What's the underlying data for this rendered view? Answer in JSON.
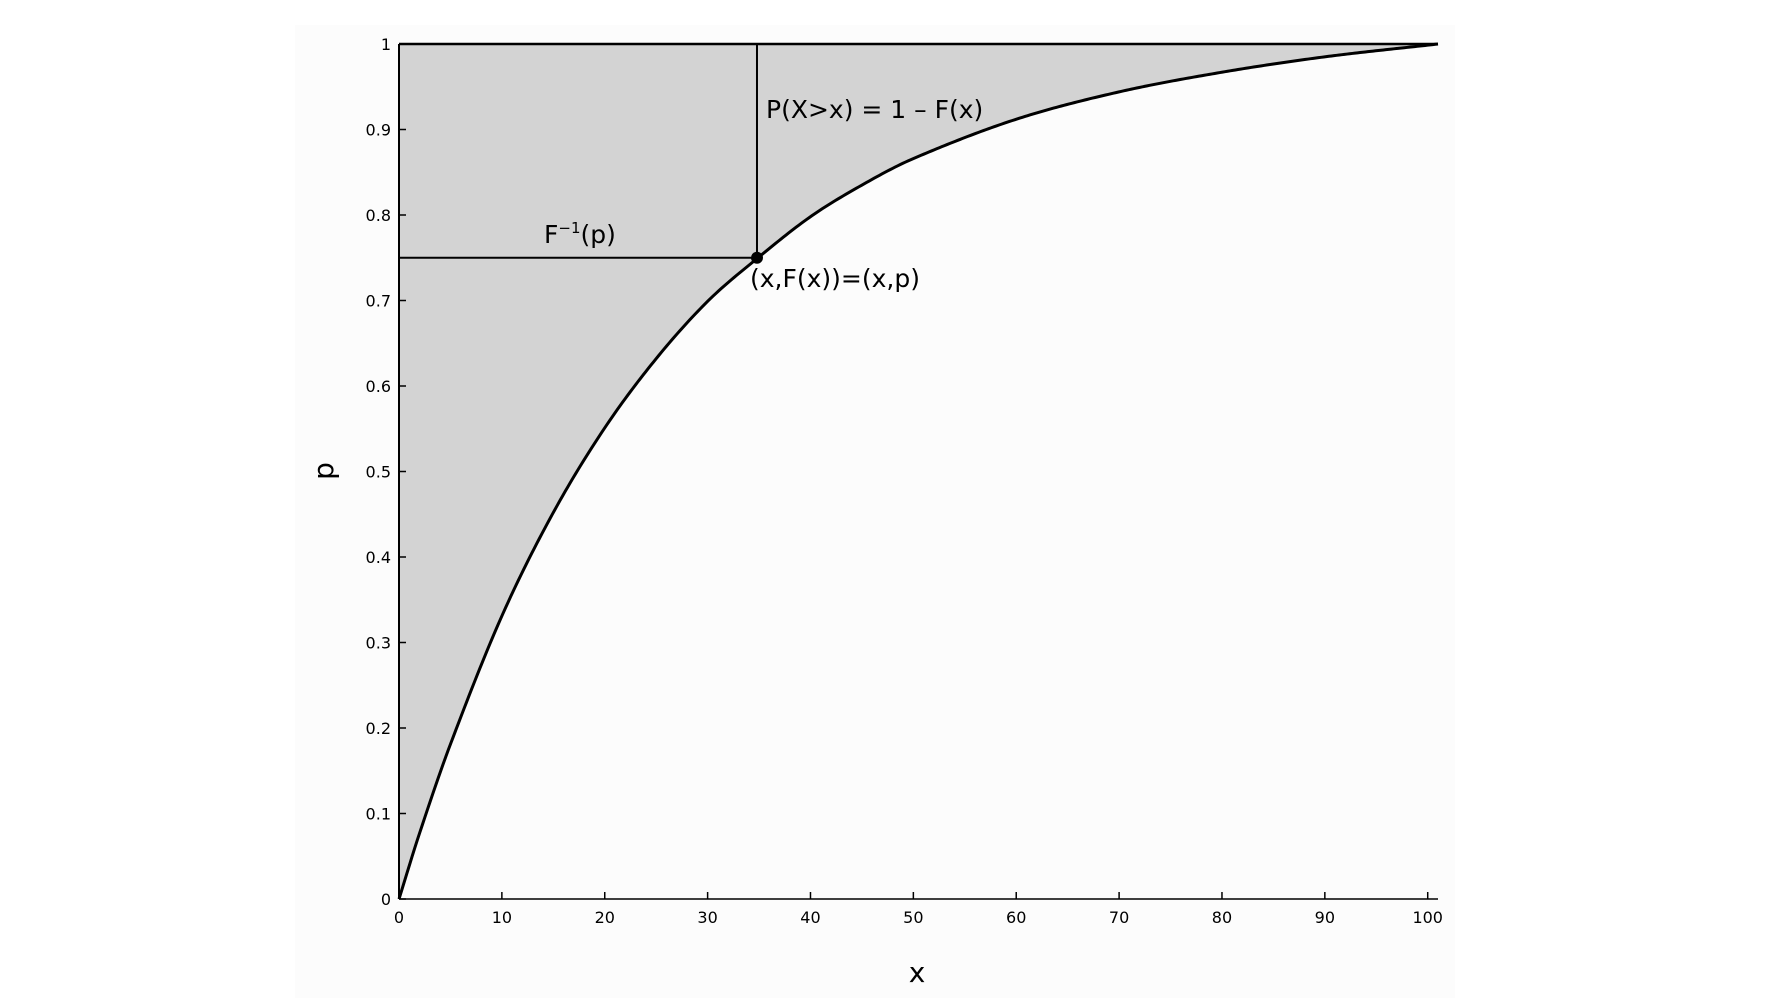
{
  "chart_data": {
    "type": "line",
    "title": "",
    "xlabel": "x",
    "ylabel": "p",
    "xlim": [
      0,
      101
    ],
    "ylim": [
      0,
      1
    ],
    "grid": false,
    "x_ticks": [
      "0",
      "10",
      "20",
      "30",
      "40",
      "50",
      "60",
      "70",
      "80",
      "90",
      "100"
    ],
    "y_ticks": [
      "0",
      "0.1",
      "0.2",
      "0.3",
      "0.4",
      "0.5",
      "0.6",
      "0.7",
      "0.8",
      "0.9",
      "1"
    ],
    "series": [
      {
        "x": [
          0,
          2,
          5,
          10,
          15,
          20,
          25,
          30,
          34.8,
          40,
          45,
          50,
          60,
          70,
          80,
          90,
          101
        ],
        "y": [
          0,
          0.077,
          0.181,
          0.331,
          0.452,
          0.551,
          0.632,
          0.699,
          0.749,
          0.798,
          0.835,
          0.866,
          0.912,
          0.944,
          0.967,
          0.985,
          1.0
        ]
      }
    ],
    "shaded_region": "between curve and p = 1",
    "highlight_point": {
      "x": 34.8,
      "y": 0.75
    },
    "annotations": {
      "survival": "P(X>x) = 1 – F(x)",
      "inverse_base": "F",
      "inverse_sup": "−1",
      "inverse_arg": "(p)",
      "point": "(x,F(x))=(x,p)"
    },
    "colors": {
      "shade": "#d3d3d3",
      "line": "#000000",
      "plot_background": "#fcfcfc"
    }
  }
}
